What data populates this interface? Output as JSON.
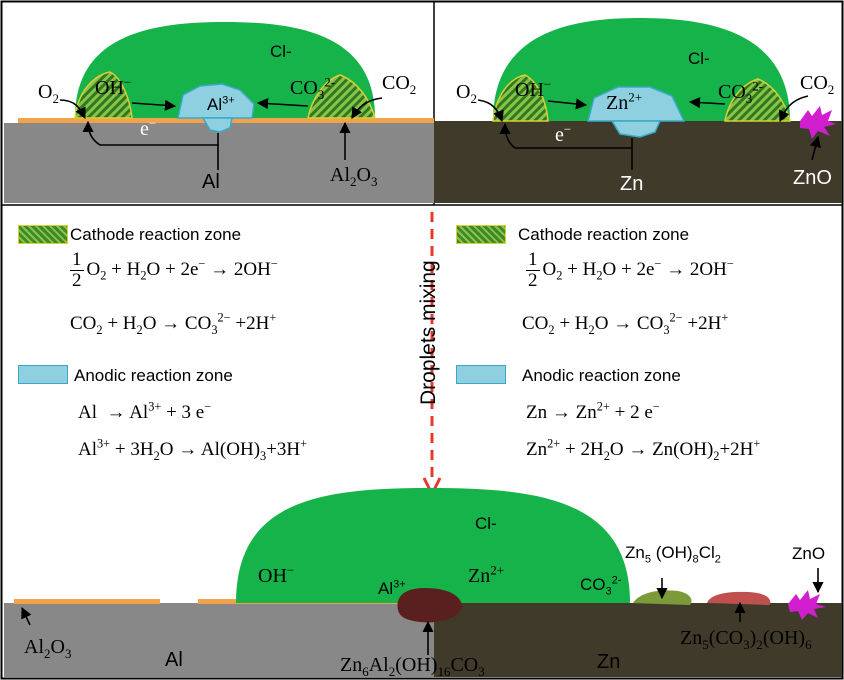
{
  "top_left": {
    "chloride": "Cl-",
    "o2": "O2",
    "oh": "OH−",
    "al_ion": "Al3+",
    "co3": "CO32-",
    "co2": "CO2",
    "electron": "e−",
    "metal": "Al",
    "oxide": "Al2O3"
  },
  "top_right": {
    "chloride": "Cl-",
    "o2": "O2",
    "oh": "OH−",
    "zn_ion": "Zn2+",
    "co3": "CO32-",
    "co2": "CO2",
    "electron": "e−",
    "metal": "Zn",
    "oxide": "ZnO"
  },
  "left_legend": {
    "cathode_title": "Cathode reaction zone",
    "cath_eq1": "1/2 O2 + H2O + 2e− → 2OH−",
    "cath_eq2": "CO2 + H2O → CO3 2− +2H+",
    "anode_title": "Anodic reaction zone",
    "anod_eq1": "Al → Al3+ + 3 e−",
    "anod_eq2": "Al3+ + 3H2O → Al(OH)3+3H+"
  },
  "right_legend": {
    "cathode_title": "Cathode reaction zone",
    "cath_eq1": "1/2 O2 + H2O + 2e− → 2OH−",
    "cath_eq2": "CO2 + H2O → CO3 2− +2H+",
    "anode_title": "Anodic reaction zone",
    "anod_eq1": "Zn → Zn2+ + 2 e−",
    "anod_eq2": "Zn2+ + 2H2O → Zn(OH)2+2H+"
  },
  "mixing_label": "Droplets mixing",
  "bottom": {
    "chloride": "Cl-",
    "oh": "OH−",
    "al_ion": "Al3+",
    "zn_ion": "Zn2+",
    "co3": "CO32-",
    "zn5_ohcl": "Zn5 (OH)8Cl2",
    "zno": "ZnO",
    "al2o3": "Al2O3",
    "al": "Al",
    "ldh": "Zn6Al2(OH)16CO3",
    "zn": "Zn",
    "zn5_co3": "Zn5(CO3)2(OH)6"
  },
  "colors": {
    "droplet": "#16b24a",
    "al_metal": "#888888",
    "zn_metal": "#403a2b",
    "oxide_layer": "#f2a24a",
    "anodic": "#8ecfe0",
    "cathodic": "#3e8a2a",
    "mixing_arrow": "#e8382c",
    "zno_deposit": "#d11fcf",
    "ldh_deposit": "#5a1f1f",
    "zn5ohcl_deposit": "#7c9a3a",
    "zn5co3_deposit": "#c0504d"
  }
}
